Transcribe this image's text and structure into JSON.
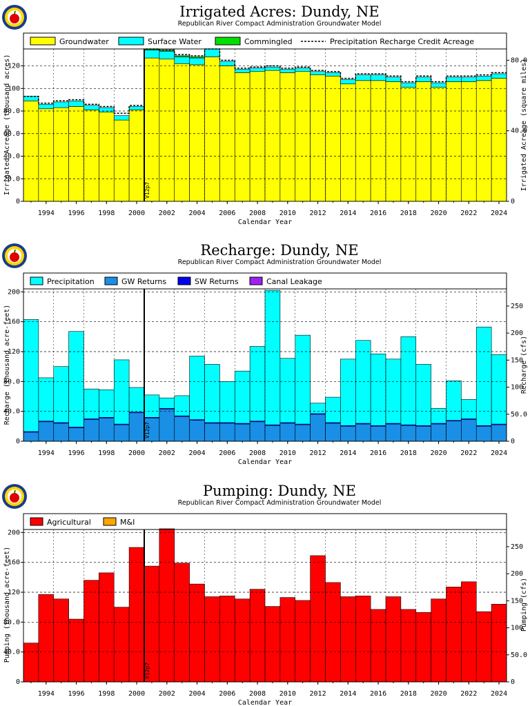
{
  "colors": {
    "groundwater": "#ffff00",
    "surface": "#00ffff",
    "commingled": "#00e000",
    "precip": "#00ffff",
    "gw_returns": "#1a8fe6",
    "sw_returns": "#0000ee",
    "canal": "#a020f0",
    "agri": "#ff0000",
    "mi": "#ffa500"
  },
  "marker_label": "V12p7",
  "years": [
    1993,
    1994,
    1995,
    1996,
    1997,
    1998,
    1999,
    2000,
    2001,
    2002,
    2003,
    2004,
    2005,
    2006,
    2007,
    2008,
    2009,
    2010,
    2011,
    2012,
    2013,
    2014,
    2015,
    2016,
    2017,
    2018,
    2019,
    2020,
    2021,
    2022,
    2023,
    2024
  ],
  "chart_data": [
    {
      "type": "bar",
      "title": "Irrigated Acres: Dundy, NE",
      "subtitle": "Republican River Compact Administration Groundwater Model",
      "xlabel": "Calendar Year",
      "ylabel": "Irrigated Acreage (thousand acres)",
      "y2label": "Irrigated Acreage (square miles)",
      "ylim": [
        0,
        135
      ],
      "yticks": [
        "0",
        "20.0",
        "40.0",
        "60.0",
        "80.0",
        "100",
        "120"
      ],
      "ytick_values": [
        0,
        20,
        40,
        60,
        80,
        100,
        120
      ],
      "y2ticks": [
        "0",
        "40.0",
        "80.0",
        "120",
        "160",
        "200"
      ],
      "y2tick_values": [
        0,
        40,
        80,
        120,
        160,
        200
      ],
      "y2_factor": 0.64,
      "xticks": [
        "1994",
        "1996",
        "1998",
        "2000",
        "2002",
        "2004",
        "2006",
        "2008",
        "2010",
        "2012",
        "2014",
        "2016",
        "2018",
        "2020",
        "2022",
        "2024"
      ],
      "legend": [
        "Groundwater",
        "Surface Water",
        "Commingled",
        "Precipitation Recharge Credit Acreage"
      ],
      "series": [
        {
          "name": "Groundwater",
          "values": [
            89,
            82,
            83,
            84,
            81,
            79,
            72,
            81,
            127,
            126,
            122,
            121,
            128,
            120,
            114,
            115,
            116,
            114,
            115,
            112,
            111,
            104,
            107,
            107,
            106,
            101,
            106,
            101,
            106,
            106,
            107,
            109
          ]
        },
        {
          "name": "Surface Water",
          "values": [
            4,
            4,
            5,
            5,
            4,
            4,
            4,
            3,
            7,
            7,
            6,
            6,
            7,
            4,
            3,
            3,
            3,
            3,
            3,
            3,
            3,
            4,
            5,
            5,
            4,
            4,
            4,
            4,
            4,
            4,
            4,
            4
          ]
        },
        {
          "name": "Commingled",
          "values": [
            0,
            0,
            0,
            0,
            0,
            0,
            0,
            0,
            1,
            1,
            1,
            1,
            0,
            0,
            0,
            0,
            0,
            0,
            0,
            0,
            0,
            0,
            0,
            0,
            0,
            0,
            0,
            0,
            0,
            0,
            0,
            0
          ]
        },
        {
          "name": "Precipitation Recharge Credit Acreage",
          "values": [
            93,
            87,
            89,
            90,
            86,
            84,
            78,
            85,
            135,
            134,
            130,
            129,
            135,
            125,
            118,
            119,
            120,
            118,
            119,
            116,
            115,
            109,
            113,
            113,
            111,
            106,
            111,
            106,
            111,
            111,
            112,
            114
          ]
        }
      ]
    },
    {
      "type": "bar",
      "title": "Recharge: Dundy, NE",
      "subtitle": "Republican River Compact Administration Groundwater Model",
      "xlabel": "Calendar Year",
      "ylabel": "Recharge (thousand acre-feet)",
      "y2label": "Recharge (cfs)",
      "ylim": [
        0,
        204
      ],
      "yticks": [
        "0",
        "40.0",
        "80.0",
        "120",
        "160",
        "200"
      ],
      "ytick_values": [
        0,
        40,
        80,
        120,
        160,
        200
      ],
      "y2ticks": [
        "0",
        "50.0",
        "100",
        "150",
        "200",
        "250"
      ],
      "y2tick_values": [
        0,
        50,
        100,
        150,
        200,
        250
      ],
      "y2_factor": 1.381,
      "xticks": [
        "1994",
        "1996",
        "1998",
        "2000",
        "2002",
        "2004",
        "2006",
        "2008",
        "2010",
        "2012",
        "2014",
        "2016",
        "2018",
        "2020",
        "2022",
        "2024"
      ],
      "legend": [
        "Precipitation",
        "GW Returns",
        "SW Returns",
        "Canal Leakage"
      ],
      "series": [
        {
          "name": "GW Returns",
          "values": [
            12,
            26,
            24,
            18,
            29,
            31,
            22,
            38,
            31,
            43,
            33,
            28,
            24,
            24,
            23,
            26,
            21,
            24,
            22,
            36,
            24,
            20,
            23,
            20,
            23,
            21,
            20,
            23,
            27,
            29,
            20,
            22
          ]
        },
        {
          "name": "SW Returns",
          "values": [
            1,
            1,
            1,
            1,
            1,
            1,
            1,
            1,
            1,
            1,
            1,
            1,
            1,
            1,
            1,
            1,
            1,
            1,
            1,
            1,
            1,
            1,
            1,
            1,
            1,
            1,
            1,
            1,
            1,
            1,
            1,
            1
          ]
        },
        {
          "name": "Canal Leakage",
          "values": [
            0,
            0,
            0,
            0,
            0,
            0,
            0,
            0,
            0,
            0,
            0,
            0,
            0,
            0,
            0,
            0,
            0,
            0,
            0,
            0,
            0,
            0,
            0,
            0,
            0,
            0,
            0,
            0,
            0,
            0,
            0,
            0
          ]
        },
        {
          "name": "Precipitation",
          "values": [
            150,
            58,
            75,
            128,
            40,
            37,
            86,
            33,
            30,
            14,
            27,
            85,
            78,
            55,
            70,
            100,
            180,
            86,
            119,
            14,
            34,
            89,
            111,
            96,
            86,
            118,
            82,
            20,
            53,
            26,
            132,
            93
          ]
        }
      ]
    },
    {
      "type": "bar",
      "title": "Pumping: Dundy, NE",
      "subtitle": "Republican River Compact Administration Groundwater Model",
      "xlabel": "Calendar Year",
      "ylabel": "Pumping (thousand acre-feet)",
      "y2label": "Pumping (cfs)",
      "ylim": [
        0,
        204
      ],
      "yticks": [
        "0",
        "40.0",
        "80.0",
        "120",
        "160",
        "200"
      ],
      "ytick_values": [
        0,
        40,
        80,
        120,
        160,
        200
      ],
      "y2ticks": [
        "0",
        "50.0",
        "100",
        "150",
        "200",
        "250"
      ],
      "y2tick_values": [
        0,
        50,
        100,
        150,
        200,
        250
      ],
      "y2_factor": 1.381,
      "xticks": [
        "1994",
        "1996",
        "1998",
        "2000",
        "2002",
        "2004",
        "2006",
        "2008",
        "2010",
        "2012",
        "2014",
        "2016",
        "2018",
        "2020",
        "2022",
        "2024"
      ],
      "legend": [
        "Agricultural",
        "M&I"
      ],
      "series": [
        {
          "name": "Agricultural",
          "values": [
            52,
            117,
            111,
            84,
            136,
            146,
            100,
            180,
            155,
            205,
            159,
            131,
            114,
            115,
            111,
            124,
            101,
            113,
            109,
            169,
            133,
            114,
            115,
            97,
            114,
            97,
            93,
            111,
            127,
            134,
            94,
            104
          ]
        },
        {
          "name": "M&I",
          "values": [
            0,
            0,
            0,
            0,
            0,
            0,
            0,
            0,
            0,
            0,
            0,
            0,
            0,
            0,
            0,
            0,
            0,
            0,
            0,
            0,
            0,
            0,
            0,
            0,
            0,
            0,
            0,
            0,
            0,
            0,
            0,
            0
          ]
        }
      ]
    }
  ]
}
